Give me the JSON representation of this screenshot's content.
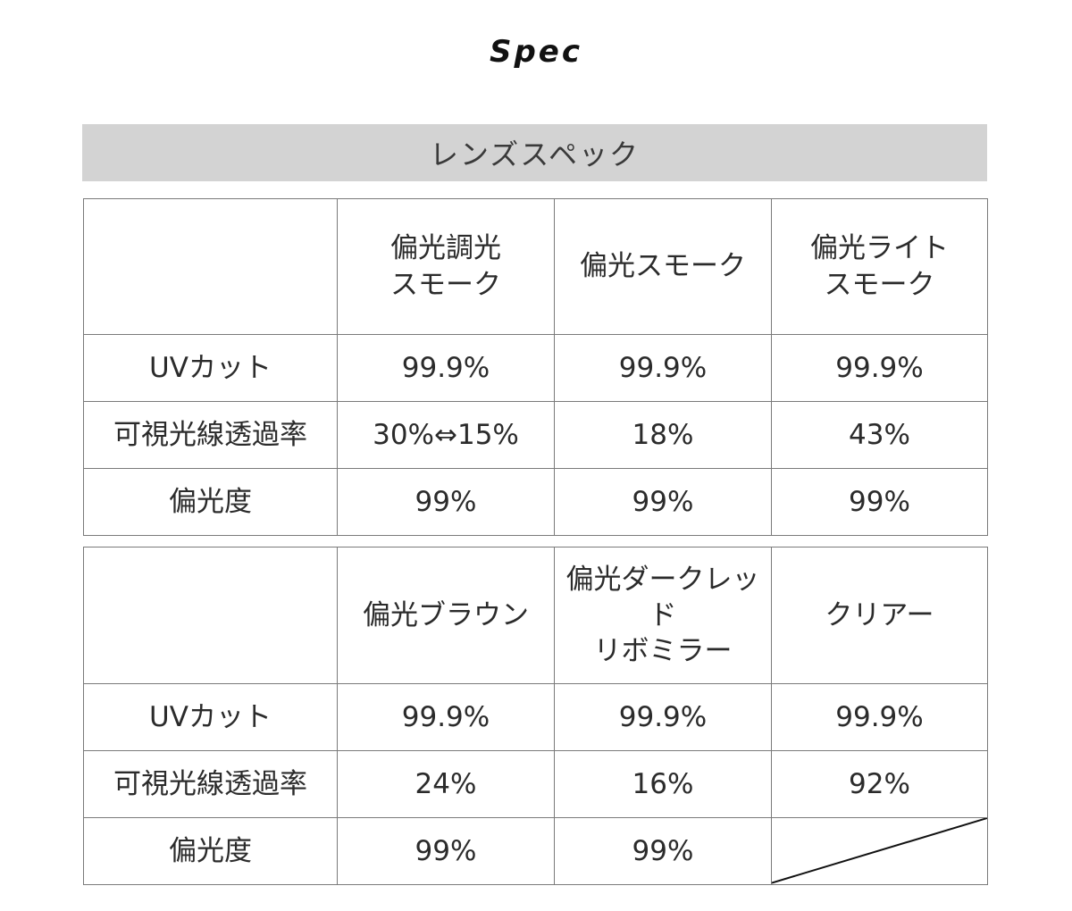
{
  "title": "Spec",
  "section_title": "レンズスペック",
  "row_labels": {
    "uv_cut": "UVカット",
    "visible_light_transmittance": "可視光線透過率",
    "polarization": "偏光度"
  },
  "table1": {
    "columns": [
      {
        "name_line1": "偏光調光",
        "name_line2": "スモーク",
        "uv_cut": "99.9%",
        "transmittance": "30%⇔15%",
        "polarization": "99%"
      },
      {
        "name_line1": "偏光スモーク",
        "name_line2": "",
        "uv_cut": "99.9%",
        "transmittance": "18%",
        "polarization": "99%"
      },
      {
        "name_line1": "偏光ライト",
        "name_line2": "スモーク",
        "uv_cut": "99.9%",
        "transmittance": "43%",
        "polarization": "99%"
      }
    ]
  },
  "table2": {
    "columns": [
      {
        "name_line1": "偏光ブラウン",
        "name_line2": "",
        "uv_cut": "99.9%",
        "transmittance": "24%",
        "polarization": "99%"
      },
      {
        "name_line1": "偏光ダークレッド",
        "name_line2": "リボミラー",
        "uv_cut": "99.9%",
        "transmittance": "16%",
        "polarization": "99%"
      },
      {
        "name_line1": "クリアー",
        "name_line2": "",
        "uv_cut": "99.9%",
        "transmittance": "92%",
        "polarization": ""
      }
    ]
  }
}
